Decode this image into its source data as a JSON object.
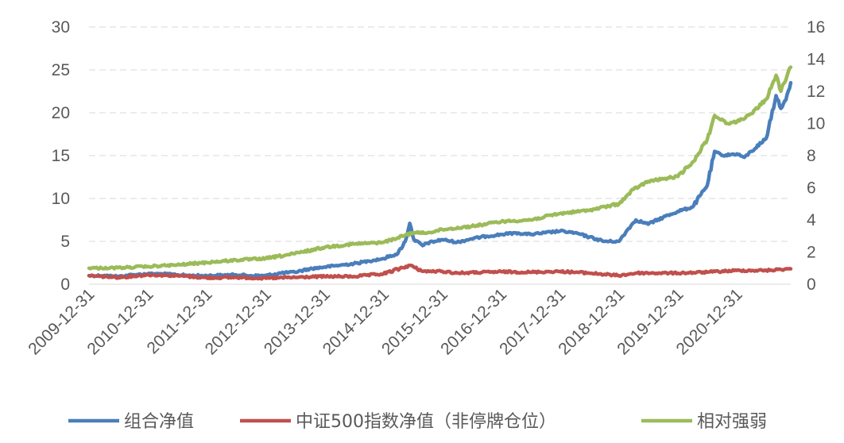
{
  "chart_data": {
    "type": "line",
    "title": "",
    "xlabel": "",
    "ylabel": "",
    "x_ticks": [
      "2009-12-31",
      "2010-12-31",
      "2011-12-31",
      "2012-12-31",
      "2013-12-31",
      "2014-12-31",
      "2015-12-31",
      "2016-12-31",
      "2017-12-31",
      "2018-12-31",
      "2019-12-31",
      "2020-12-31"
    ],
    "x_range": [
      "2009-12-31",
      "2021-11-30"
    ],
    "y_left": {
      "range": [
        0,
        30
      ],
      "ticks": [
        0,
        5,
        10,
        15,
        20,
        25,
        30
      ]
    },
    "y_right": {
      "range": [
        0,
        16
      ],
      "ticks": [
        0,
        2,
        4,
        6,
        8,
        10,
        12,
        14,
        16
      ]
    },
    "grid": "horizontal-dashed",
    "legend_position": "bottom",
    "series": [
      {
        "name": "组合净值",
        "axis": "left",
        "color": "#4A7EBB",
        "points": [
          [
            "2009-12-31",
            1.0
          ],
          [
            "2010-03-31",
            1.0
          ],
          [
            "2010-06-30",
            0.9
          ],
          [
            "2010-09-30",
            1.1
          ],
          [
            "2010-12-31",
            1.2
          ],
          [
            "2011-03-31",
            1.2
          ],
          [
            "2011-06-30",
            1.1
          ],
          [
            "2011-09-30",
            1.0
          ],
          [
            "2011-12-31",
            1.0
          ],
          [
            "2012-03-31",
            1.05
          ],
          [
            "2012-06-30",
            1.1
          ],
          [
            "2012-09-30",
            1.0
          ],
          [
            "2012-12-31",
            1.0
          ],
          [
            "2013-03-31",
            1.3
          ],
          [
            "2013-06-30",
            1.4
          ],
          [
            "2013-09-30",
            1.8
          ],
          [
            "2013-12-31",
            2.0
          ],
          [
            "2014-03-31",
            2.2
          ],
          [
            "2014-06-30",
            2.4
          ],
          [
            "2014-09-30",
            2.7
          ],
          [
            "2014-12-31",
            3.0
          ],
          [
            "2015-03-31",
            3.6
          ],
          [
            "2015-05-15",
            5.0
          ],
          [
            "2015-06-12",
            7.1
          ],
          [
            "2015-07-08",
            5.2
          ],
          [
            "2015-08-31",
            4.5
          ],
          [
            "2015-09-30",
            4.8
          ],
          [
            "2015-12-31",
            5.2
          ],
          [
            "2016-03-31",
            4.9
          ],
          [
            "2016-06-30",
            5.3
          ],
          [
            "2016-09-30",
            5.6
          ],
          [
            "2016-12-31",
            5.8
          ],
          [
            "2017-03-31",
            6.0
          ],
          [
            "2017-06-30",
            5.8
          ],
          [
            "2017-09-30",
            6.0
          ],
          [
            "2017-12-31",
            6.2
          ],
          [
            "2018-03-31",
            6.0
          ],
          [
            "2018-06-30",
            5.5
          ],
          [
            "2018-09-30",
            5.0
          ],
          [
            "2018-12-31",
            5.0
          ],
          [
            "2019-02-28",
            6.5
          ],
          [
            "2019-04-15",
            7.5
          ],
          [
            "2019-06-30",
            7.0
          ],
          [
            "2019-09-30",
            7.8
          ],
          [
            "2019-12-31",
            8.5
          ],
          [
            "2020-03-31",
            9.0
          ],
          [
            "2020-06-30",
            11.5
          ],
          [
            "2020-08-15",
            15.5
          ],
          [
            "2020-09-30",
            15.0
          ],
          [
            "2020-12-31",
            15.2
          ],
          [
            "2021-02-15",
            14.8
          ],
          [
            "2021-03-31",
            15.5
          ],
          [
            "2021-06-30",
            17.0
          ],
          [
            "2021-08-31",
            22.0
          ],
          [
            "2021-09-30",
            20.5
          ],
          [
            "2021-10-31",
            21.5
          ],
          [
            "2021-11-30",
            23.5
          ]
        ]
      },
      {
        "name": "中证500指数净值（非停牌仓位）",
        "axis": "left",
        "color": "#C0504D",
        "points": [
          [
            "2009-12-31",
            1.0
          ],
          [
            "2010-06-30",
            0.8
          ],
          [
            "2010-12-31",
            1.1
          ],
          [
            "2011-06-30",
            1.0
          ],
          [
            "2011-12-31",
            0.75
          ],
          [
            "2012-06-30",
            0.8
          ],
          [
            "2012-12-31",
            0.7
          ],
          [
            "2013-06-30",
            0.8
          ],
          [
            "2013-12-31",
            0.9
          ],
          [
            "2014-06-30",
            0.9
          ],
          [
            "2014-12-31",
            1.2
          ],
          [
            "2015-06-12",
            2.2
          ],
          [
            "2015-08-31",
            1.5
          ],
          [
            "2015-12-31",
            1.5
          ],
          [
            "2016-03-31",
            1.3
          ],
          [
            "2016-12-31",
            1.45
          ],
          [
            "2017-06-30",
            1.4
          ],
          [
            "2017-12-31",
            1.5
          ],
          [
            "2018-06-30",
            1.3
          ],
          [
            "2018-12-31",
            1.0
          ],
          [
            "2019-04-15",
            1.3
          ],
          [
            "2019-12-31",
            1.3
          ],
          [
            "2020-06-30",
            1.4
          ],
          [
            "2020-12-31",
            1.6
          ],
          [
            "2021-06-30",
            1.6
          ],
          [
            "2021-11-30",
            1.8
          ]
        ]
      },
      {
        "name": "相对强弱",
        "axis": "right",
        "color": "#9BBB59",
        "points": [
          [
            "2009-12-31",
            1.0
          ],
          [
            "2010-06-30",
            1.02
          ],
          [
            "2010-12-31",
            1.1
          ],
          [
            "2011-06-30",
            1.2
          ],
          [
            "2011-12-31",
            1.35
          ],
          [
            "2012-06-30",
            1.5
          ],
          [
            "2012-12-31",
            1.6
          ],
          [
            "2013-06-30",
            1.9
          ],
          [
            "2013-12-31",
            2.3
          ],
          [
            "2014-06-30",
            2.5
          ],
          [
            "2014-12-31",
            2.6
          ],
          [
            "2015-03-31",
            2.9
          ],
          [
            "2015-06-30",
            3.2
          ],
          [
            "2015-09-30",
            3.2
          ],
          [
            "2015-12-31",
            3.4
          ],
          [
            "2016-06-30",
            3.6
          ],
          [
            "2016-12-31",
            3.9
          ],
          [
            "2017-06-30",
            4.0
          ],
          [
            "2017-12-31",
            4.4
          ],
          [
            "2018-06-30",
            4.6
          ],
          [
            "2018-12-31",
            5.0
          ],
          [
            "2019-03-31",
            5.9
          ],
          [
            "2019-06-30",
            6.4
          ],
          [
            "2019-12-31",
            6.7
          ],
          [
            "2020-03-31",
            7.6
          ],
          [
            "2020-06-30",
            9.0
          ],
          [
            "2020-08-15",
            10.5
          ],
          [
            "2020-10-31",
            10.0
          ],
          [
            "2020-12-31",
            10.1
          ],
          [
            "2021-03-31",
            10.6
          ],
          [
            "2021-06-30",
            11.5
          ],
          [
            "2021-08-31",
            13.0
          ],
          [
            "2021-09-30",
            12.0
          ],
          [
            "2021-11-30",
            13.5
          ]
        ]
      }
    ]
  }
}
